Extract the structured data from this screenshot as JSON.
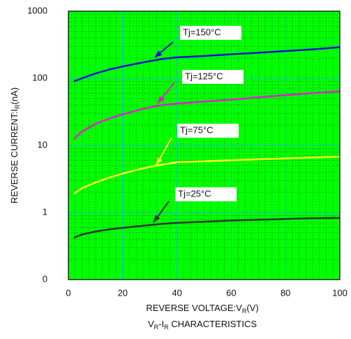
{
  "chart_data": {
    "type": "line",
    "title": [
      "V",
      "R",
      "-I",
      "R",
      " CHARACTERISTICS"
    ],
    "x_label": [
      "REVERSE VOLTAGE:V",
      "R",
      "(V)"
    ],
    "y_label": [
      "REVERSE CURRENT:I",
      "R",
      "(nA)"
    ],
    "x": [
      2,
      5,
      10,
      15,
      20,
      25,
      30,
      35,
      40,
      50,
      60,
      70,
      80,
      90,
      100
    ],
    "series": [
      {
        "name": "Tj=150°C",
        "color": "#0010d0",
        "values": [
          90,
          100,
          118,
          135,
          150,
          165,
          180,
          195,
          205,
          215,
          228,
          240,
          255,
          270,
          290
        ]
      },
      {
        "name": "Tj=125°C",
        "color": "#e020d0",
        "values": [
          12.5,
          16,
          21,
          25,
          29,
          33,
          37,
          40,
          42,
          45,
          48,
          52,
          56,
          60,
          64
        ]
      },
      {
        "name": "Tj=75°C",
        "color": "#ffff20",
        "values": [
          1.9,
          2.3,
          2.8,
          3.3,
          3.8,
          4.3,
          4.8,
          5.2,
          5.6,
          5.8,
          6.0,
          6.2,
          6.4,
          6.6,
          6.8
        ]
      },
      {
        "name": "Tj=25°C",
        "color": "#333333",
        "values": [
          0.42,
          0.47,
          0.52,
          0.56,
          0.59,
          0.62,
          0.65,
          0.68,
          0.7,
          0.73,
          0.76,
          0.78,
          0.8,
          0.82,
          0.83
        ]
      }
    ],
    "xlim": [
      0,
      100
    ],
    "xticks": [
      0,
      20,
      40,
      60,
      80,
      100
    ],
    "ylim": [
      0.1,
      1000
    ],
    "yticks": [
      {
        "value": 0.1,
        "label": "0"
      },
      1,
      10,
      100,
      1000
    ],
    "log_y": true,
    "grid": true
  }
}
